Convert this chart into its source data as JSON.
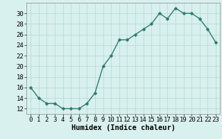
{
  "x": [
    0,
    1,
    2,
    3,
    4,
    5,
    6,
    7,
    8,
    9,
    10,
    11,
    12,
    13,
    14,
    15,
    16,
    17,
    18,
    19,
    20,
    21,
    22,
    23
  ],
  "y": [
    16,
    14,
    13,
    13,
    12,
    12,
    12,
    13,
    15,
    20,
    22,
    25,
    25,
    26,
    27,
    28,
    30,
    29,
    31,
    30,
    30,
    29,
    27,
    24.5
  ],
  "line_color": "#2d7a6a",
  "marker_color": "#2d7a6a",
  "bg_color": "#d8f0ee",
  "grid_color": "#b8dbd8",
  "xlabel": "Humidex (Indice chaleur)",
  "xlim": [
    -0.5,
    23.5
  ],
  "ylim": [
    11,
    32
  ],
  "yticks": [
    12,
    14,
    16,
    18,
    20,
    22,
    24,
    26,
    28,
    30
  ],
  "xticks": [
    0,
    1,
    2,
    3,
    4,
    5,
    6,
    7,
    8,
    9,
    10,
    11,
    12,
    13,
    14,
    15,
    16,
    17,
    18,
    19,
    20,
    21,
    22,
    23
  ],
  "xlabel_fontsize": 7.5,
  "tick_fontsize": 6.5,
  "marker_size": 2.5,
  "line_width": 1.0
}
